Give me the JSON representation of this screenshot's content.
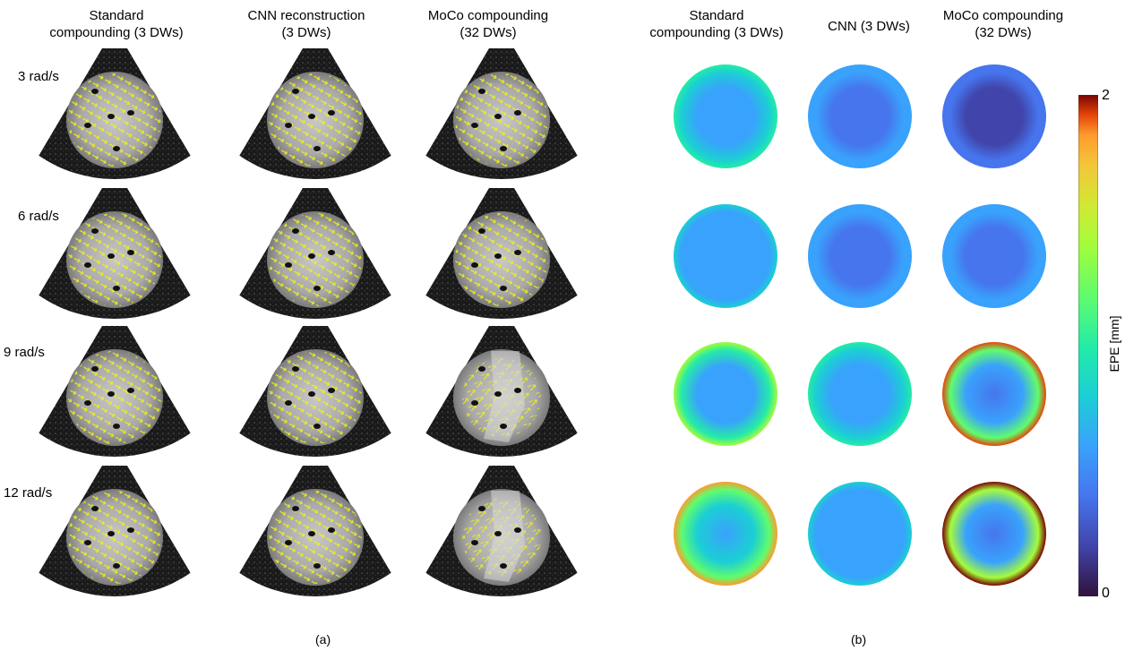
{
  "panel_a": {
    "column_headers": [
      "Standard\ncompounding (3 DWs)",
      "CNN reconstruction\n(3 DWs)",
      "MoCo compounding\n(32 DWs)"
    ],
    "row_labels": [
      "3 rad/s",
      "6 rad/s",
      "9 rad/s",
      "12 rad/s"
    ],
    "caption": "(a)"
  },
  "panel_b": {
    "column_headers": [
      "Standard\ncompounding (3 DWs)",
      "CNN (3 DWs)",
      "MoCo compounding\n(32 DWs)"
    ],
    "caption": "(b)",
    "colorbar": {
      "label": "EPE [mm]",
      "max_label": "2",
      "min_label": "0",
      "range": [
        0,
        2
      ],
      "colormap": "turbo"
    },
    "epe_maps": [
      [
        {
          "center": 0.55,
          "edge": 0.75
        },
        {
          "center": 0.4,
          "edge": 0.55
        },
        {
          "center": 0.15,
          "edge": 0.35
        }
      ],
      [
        {
          "center": 0.45,
          "edge": 0.6
        },
        {
          "center": 0.3,
          "edge": 0.55
        },
        {
          "center": 0.35,
          "edge": 0.55
        }
      ],
      [
        {
          "center": 0.5,
          "edge": 1.1
        },
        {
          "center": 0.45,
          "edge": 0.8
        },
        {
          "center": 0.3,
          "edge": 1.8
        }
      ],
      [
        {
          "center": 0.5,
          "edge": 1.6
        },
        {
          "center": 0.45,
          "edge": 0.65
        },
        {
          "center": 0.4,
          "edge": 1.95
        }
      ]
    ]
  }
}
